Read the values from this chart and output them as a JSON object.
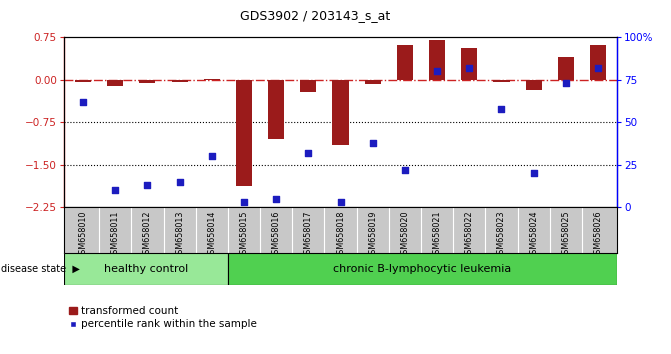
{
  "title": "GDS3902 / 203143_s_at",
  "samples": [
    "GSM658010",
    "GSM658011",
    "GSM658012",
    "GSM658013",
    "GSM658014",
    "GSM658015",
    "GSM658016",
    "GSM658017",
    "GSM658018",
    "GSM658019",
    "GSM658020",
    "GSM658021",
    "GSM658022",
    "GSM658023",
    "GSM658024",
    "GSM658025",
    "GSM658026"
  ],
  "red_bars": [
    -0.05,
    -0.12,
    -0.06,
    -0.05,
    0.02,
    -1.87,
    -1.05,
    -0.22,
    -1.15,
    -0.08,
    0.62,
    0.7,
    0.55,
    -0.05,
    -0.18,
    0.4,
    0.62
  ],
  "blue_squares": [
    62,
    10,
    13,
    15,
    30,
    3,
    5,
    32,
    3,
    38,
    22,
    80,
    82,
    58,
    20,
    73,
    82
  ],
  "ylim_left": [
    -2.25,
    0.75
  ],
  "ylim_right": [
    0,
    100
  ],
  "yticks_left": [
    0.75,
    0.0,
    -0.75,
    -1.5,
    -2.25
  ],
  "yticks_right": [
    100,
    75,
    50,
    25,
    0
  ],
  "ytick_labels_right": [
    "100%",
    "75",
    "50",
    "25",
    "0"
  ],
  "healthy_count": 5,
  "healthy_label": "healthy control",
  "leukemia_label": "chronic B-lymphocytic leukemia",
  "disease_state_label": "disease state",
  "legend_red": "transformed count",
  "legend_blue": "percentile rank within the sample",
  "bar_color": "#9B1B1B",
  "square_color": "#1C1CBF",
  "healthy_bg": "#98E898",
  "leukemia_bg": "#50D050",
  "label_bg": "#C8C8C8",
  "bar_width": 0.5
}
